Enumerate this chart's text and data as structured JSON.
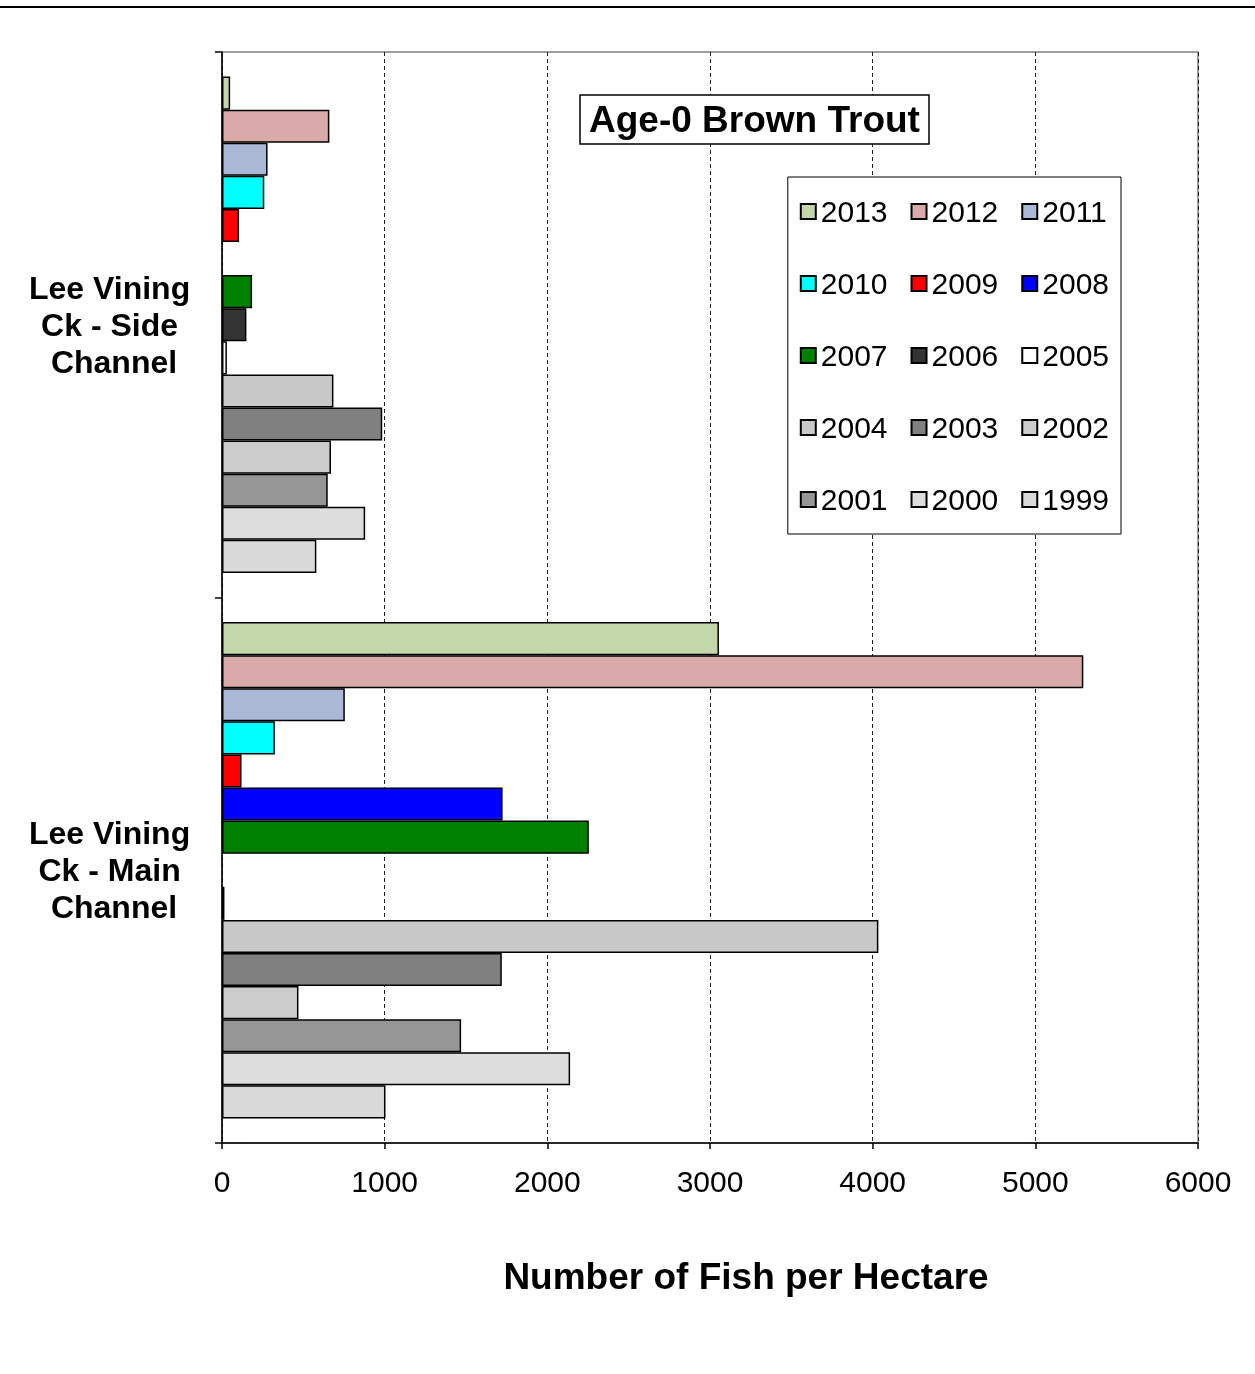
{
  "chart_data": {
    "type": "bar",
    "orientation": "horizontal",
    "title": "Age-0 Brown Trout",
    "xlabel": "Number of Fish per Hectare",
    "categories": [
      "Lee Vining Ck - Side Channel",
      "Lee Vining Ck - Main Channel"
    ],
    "series": [
      {
        "name": "2013",
        "color": "#c4d7aa",
        "values": [
          50,
          3055
        ]
      },
      {
        "name": "2012",
        "color": "#daa9a9",
        "values": [
          660,
          5295
        ]
      },
      {
        "name": "2011",
        "color": "#abb9d7",
        "values": [
          280,
          755
        ]
      },
      {
        "name": "2010",
        "color": "#00ffff",
        "values": [
          260,
          325
        ]
      },
      {
        "name": "2009",
        "color": "#ff0000",
        "values": [
          105,
          120
        ]
      },
      {
        "name": "2008",
        "color": "#0000ff",
        "values": [
          null,
          1725
        ]
      },
      {
        "name": "2007",
        "color": "#008000",
        "values": [
          185,
          2255
        ]
      },
      {
        "name": "2006",
        "color": "#333333",
        "values": [
          150,
          null
        ]
      },
      {
        "name": "2005",
        "color": "#ffffff",
        "values": [
          30,
          15
        ]
      },
      {
        "name": "2004",
        "color": "#c8c8c8",
        "values": [
          685,
          4035
        ]
      },
      {
        "name": "2003",
        "color": "#808080",
        "values": [
          985,
          1720
        ]
      },
      {
        "name": "2002",
        "color": "#cccccc",
        "values": [
          670,
          470
        ]
      },
      {
        "name": "2001",
        "color": "#969696",
        "values": [
          650,
          1470
        ]
      },
      {
        "name": "2000",
        "color": "#dddddd",
        "values": [
          880,
          2140
        ]
      },
      {
        "name": "1999",
        "color": "#d9d9d9",
        "values": [
          580,
          1005
        ]
      }
    ],
    "xlim": [
      0,
      6000
    ],
    "xticks": [
      0,
      1000,
      2000,
      3000,
      4000,
      5000,
      6000
    ],
    "grid": "x",
    "legend": "top right"
  }
}
